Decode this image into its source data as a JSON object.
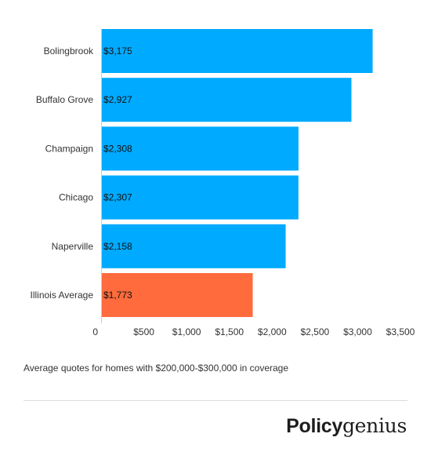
{
  "chart_data": {
    "type": "bar",
    "orientation": "horizontal",
    "categories": [
      "Bolingbrook",
      "Buffalo Grove",
      "Champaign",
      "Chicago",
      "Naperville",
      "Illinois Average"
    ],
    "values": [
      3175,
      2927,
      2308,
      2307,
      2158,
      1773
    ],
    "value_labels": [
      "$3,175",
      "$2,927",
      "$2,308",
      "$2,307",
      "$2,158",
      "$1,773"
    ],
    "bar_colors": [
      "#00aaff",
      "#00aaff",
      "#00aaff",
      "#00aaff",
      "#00aaff",
      "#ff6b3d"
    ],
    "xlim": [
      0,
      3500
    ],
    "xticks": [
      0,
      500,
      1000,
      1500,
      2000,
      2500,
      3000,
      3500
    ],
    "xtick_labels": [
      "0",
      "$500",
      "$1,000",
      "$1,500",
      "$2,000",
      "$2,500",
      "$3,000",
      "$3,500"
    ],
    "grid": false,
    "legend": "none"
  },
  "caption": "Average quotes for homes with $200,000-$300,000 in coverage",
  "brand": {
    "bold": "Policy",
    "light": "genius"
  }
}
